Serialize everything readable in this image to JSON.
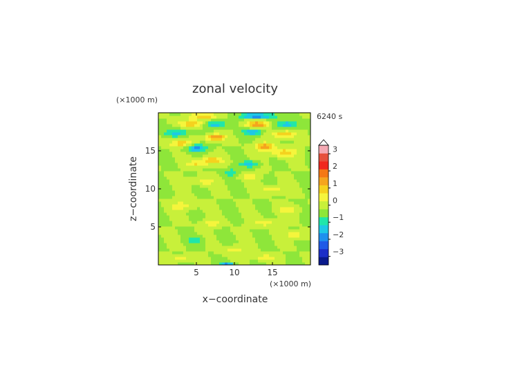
{
  "chart_data": {
    "type": "heatmap",
    "title": "zonal velocity",
    "xlabel": "x−coordinate",
    "ylabel": "z−coordinate",
    "x_unit": "(×1000 m)",
    "y_unit": "(×1000 m)",
    "time_label": "6240 s",
    "xlim": [
      0,
      20
    ],
    "ylim": [
      0,
      20
    ],
    "x_ticks": [
      5,
      10,
      15
    ],
    "y_ticks": [
      5,
      10,
      15
    ],
    "x_tick_labels": [
      "5",
      "10",
      "15"
    ],
    "y_tick_labels": [
      "5",
      "10",
      "15"
    ],
    "colorbar": {
      "min": -3.5,
      "max": 3.5,
      "step": 0.5,
      "ticks": [
        3,
        2,
        1,
        0,
        -1,
        -2,
        -3
      ],
      "tick_labels": [
        "3",
        "2",
        "1",
        "0",
        "−1",
        "−2",
        "−3"
      ],
      "colors": [
        "#0a1a8c",
        "#1c2ec8",
        "#1f5ae6",
        "#1e90ee",
        "#1ec8e6",
        "#20e6aa",
        "#8ee63a",
        "#c8f03a",
        "#f5f53c",
        "#f5d21e",
        "#f5a51e",
        "#f57814",
        "#f0281e",
        "#e6503c",
        "#f5aab4"
      ],
      "overflow": "top"
    },
    "grid": false,
    "features": [
      {
        "x": 6,
        "z": 19.6,
        "a": 1.5,
        "sx": 2.0,
        "sz": 0.3
      },
      {
        "x": 13,
        "z": 19.6,
        "a": -2.0,
        "sx": 2.5,
        "sz": 0.3
      },
      {
        "x": 4.5,
        "z": 18.6,
        "a": 1.4,
        "sx": 1.8,
        "sz": 0.5
      },
      {
        "x": 7.5,
        "z": 18.5,
        "a": -1.5,
        "sx": 1.5,
        "sz": 0.4
      },
      {
        "x": 13,
        "z": 18.5,
        "a": 2.0,
        "sx": 1.5,
        "sz": 0.4
      },
      {
        "x": 17,
        "z": 18.5,
        "a": -1.3,
        "sx": 1.5,
        "sz": 0.5
      },
      {
        "x": 2.5,
        "z": 17.4,
        "a": -1.2,
        "sx": 1.6,
        "sz": 0.5
      },
      {
        "x": 7.5,
        "z": 16.8,
        "a": 2.2,
        "sx": 1.2,
        "sz": 0.4
      },
      {
        "x": 12.5,
        "z": 17.5,
        "a": -1.6,
        "sx": 1.2,
        "sz": 0.4
      },
      {
        "x": 16.5,
        "z": 17.2,
        "a": 1.4,
        "sx": 1.6,
        "sz": 0.5
      },
      {
        "x": 3,
        "z": 16.0,
        "a": 1.3,
        "sx": 1.6,
        "sz": 0.5
      },
      {
        "x": 5,
        "z": 15.4,
        "a": -1.6,
        "sx": 1.4,
        "sz": 0.5
      },
      {
        "x": 14,
        "z": 15.6,
        "a": 1.8,
        "sx": 1.2,
        "sz": 0.5
      },
      {
        "x": 16.5,
        "z": 14.8,
        "a": 1.2,
        "sx": 1.8,
        "sz": 0.6
      },
      {
        "x": 7,
        "z": 13.8,
        "a": 1.4,
        "sx": 1.4,
        "sz": 0.5
      },
      {
        "x": 12,
        "z": 13.3,
        "a": -1.3,
        "sx": 1.2,
        "sz": 0.4
      },
      {
        "x": 5,
        "z": 13.3,
        "a": 1.0,
        "sx": 1.2,
        "sz": 0.4
      },
      {
        "x": 9.5,
        "z": 12.2,
        "a": -0.9,
        "sx": 0.8,
        "sz": 0.5
      },
      {
        "x": 12,
        "z": 11.7,
        "a": 0.9,
        "sx": 1.2,
        "sz": 0.4
      },
      {
        "x": 6,
        "z": 11.0,
        "a": 0.8,
        "sx": 1.5,
        "sz": 0.5
      },
      {
        "x": 15,
        "z": 10.0,
        "a": 0.8,
        "sx": 1.5,
        "sz": 0.5
      },
      {
        "x": 3,
        "z": 7.8,
        "a": 0.8,
        "sx": 1.5,
        "sz": 0.6
      },
      {
        "x": 17,
        "z": 7.3,
        "a": 0.8,
        "sx": 1.5,
        "sz": 0.5
      },
      {
        "x": 7,
        "z": 5.5,
        "a": 0.8,
        "sx": 1.2,
        "sz": 0.5
      },
      {
        "x": 14,
        "z": 5.6,
        "a": 0.8,
        "sx": 1.5,
        "sz": 0.5
      },
      {
        "x": 18,
        "z": 4.0,
        "a": 0.8,
        "sx": 1.5,
        "sz": 0.5
      },
      {
        "x": 5,
        "z": 3.3,
        "a": -0.9,
        "sx": 1.0,
        "sz": 0.5
      },
      {
        "x": 10,
        "z": 2.0,
        "a": 0.8,
        "sx": 1.5,
        "sz": 0.5
      },
      {
        "x": 3,
        "z": 0.8,
        "a": 0.8,
        "sx": 1.5,
        "sz": 0.4
      },
      {
        "x": 14,
        "z": 1.0,
        "a": 0.8,
        "sx": 1.5,
        "sz": 0.4
      },
      {
        "x": 9,
        "z": 0.1,
        "a": -1.8,
        "sx": 1.0,
        "sz": 0.2
      }
    ]
  }
}
